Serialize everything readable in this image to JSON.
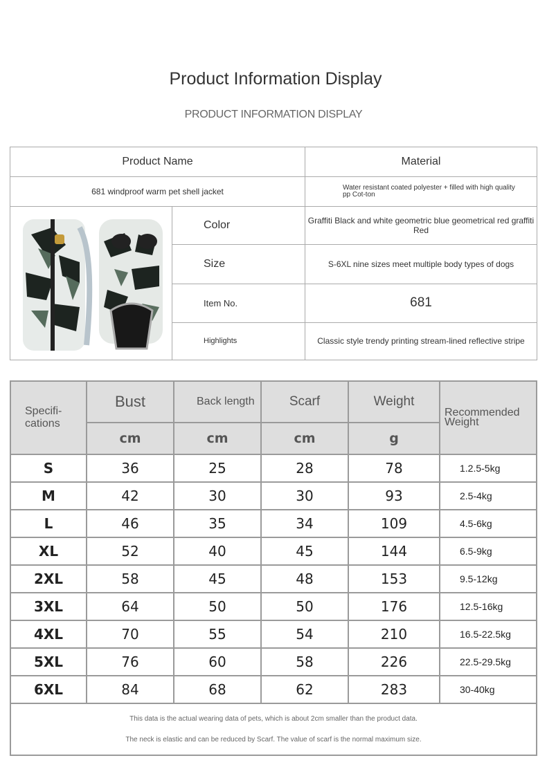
{
  "title": "Product Information Display",
  "subtitle": "PRODUCT INFORMATION DISPLAY",
  "info": {
    "product_name_label": "Product Name",
    "material_label": "Material",
    "product_name": "681 windproof warm pet shell jacket",
    "material": "Water resistant coated polyester + filled with high quality pp Cot-ton",
    "rows": [
      {
        "label": "Color",
        "value": "Graffiti Black and white geometric blue geometrical red graffiti Red"
      },
      {
        "label": "Size",
        "value": "S-6XL nine sizes meet multiple body types of dogs"
      },
      {
        "label": "Item No.",
        "value": "681"
      },
      {
        "label": "Highlights",
        "value": "Classic style trendy printing stream-lined reflective stripe"
      }
    ]
  },
  "size_table": {
    "headers": [
      "Specifi-cations",
      "Bust",
      "Back length",
      "Scarf",
      "Weight",
      "Recommended Weight"
    ],
    "units": [
      "cm",
      "cm",
      "cm",
      "g"
    ],
    "rows": [
      [
        "S",
        "36",
        "25",
        "28",
        "78",
        "1.2.5-5kg"
      ],
      [
        "M",
        "42",
        "30",
        "30",
        "93",
        "2.5-4kg"
      ],
      [
        "L",
        "46",
        "35",
        "34",
        "109",
        "4.5-6kg"
      ],
      [
        "XL",
        "52",
        "40",
        "45",
        "144",
        "6.5-9kg"
      ],
      [
        "2XL",
        "58",
        "45",
        "48",
        "153",
        "9.5-12kg"
      ],
      [
        "3XL",
        "64",
        "50",
        "50",
        "176",
        "12.5-16kg"
      ],
      [
        "4XL",
        "70",
        "55",
        "54",
        "210",
        "16.5-22.5kg"
      ],
      [
        "5XL",
        "76",
        "60",
        "58",
        "226",
        "22.5-29.5kg"
      ],
      [
        "6XL",
        "84",
        "68",
        "62",
        "283",
        "30-40kg"
      ]
    ],
    "note1": "This data is the actual wearing data of pets, which is about 2cm smaller than the product data.",
    "note2": "The neck is elastic and can be reduced by Scarf. The value of scarf is the normal maximum size."
  }
}
